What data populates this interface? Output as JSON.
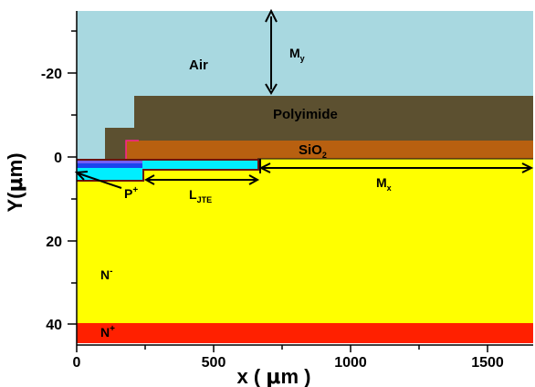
{
  "axes": {
    "x_title_main": "x ( ",
    "x_title_mu": "μ",
    "x_title_end": "m )",
    "y_title_main": "Y(",
    "y_title_mu": "μ",
    "y_title_end": "m)",
    "x_ticks": [
      "0",
      "500",
      "1000",
      "1500"
    ],
    "y_ticks": [
      "-20",
      "0",
      "20",
      "40"
    ]
  },
  "regions": {
    "air": "Air",
    "polyimide": "Polyimide",
    "sio2_base": "SiO",
    "sio2_sub": "2",
    "nminus_base": "N",
    "nminus_sup": "-",
    "nplus_base": "N",
    "nplus_sup": "+",
    "pplus_base": "P",
    "pplus_sup": "+"
  },
  "dimensions": {
    "my_base": "M",
    "my_sub": "y",
    "mx_base": "M",
    "mx_sub": "x",
    "ljte_base": "L",
    "ljte_sub": "JTE"
  },
  "colors": {
    "air": "#a8d8e0",
    "polyimide": "#5c5030",
    "sio2": "#b86010",
    "nminus": "#ffff00",
    "nplus": "#ff2000",
    "pplus": "#1a44ee",
    "jte": "#00eeff",
    "oxide_edge": "#ff2090"
  }
}
